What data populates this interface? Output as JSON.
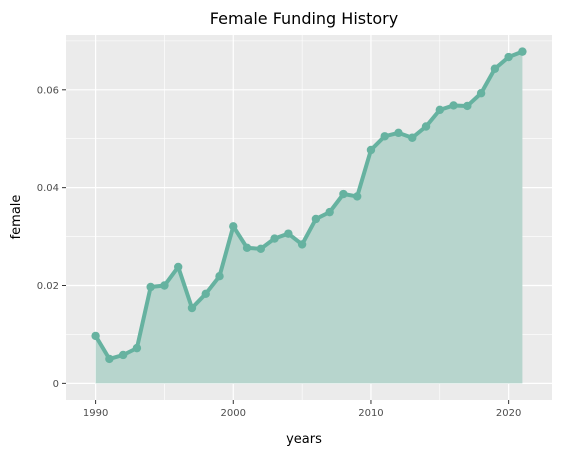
{
  "chart_data": {
    "type": "area",
    "title": "Female Funding History",
    "xlabel": "years",
    "ylabel": "female",
    "xlim": [
      1987.85,
      2023.15
    ],
    "ylim": [
      -0.0034,
      0.0712
    ],
    "x_ticks": [
      1990,
      2000,
      2010,
      2020
    ],
    "x_tick_labels": [
      "1990",
      "2000",
      "2010",
      "2020"
    ],
    "y_ticks": [
      0,
      0.02,
      0.04,
      0.06
    ],
    "y_tick_labels": [
      "0",
      "0.02",
      "0.04",
      "0.06"
    ],
    "grid": true,
    "legend": "none",
    "colors": {
      "panel": "#ebebeb",
      "grid": "#ffffff",
      "line": "#66b2a0",
      "area": "#b7d5cd",
      "tick_text": "#4d4d4d",
      "text": "#000000"
    },
    "series": [
      {
        "x": [
          1990,
          1991,
          1992,
          1993,
          1994,
          1995,
          1996,
          1997,
          1998,
          1999,
          2000,
          2001,
          2002,
          2003,
          2004,
          2005,
          2006,
          2007,
          2008,
          2009,
          2010,
          2011,
          2012,
          2013,
          2014,
          2015,
          2016,
          2017,
          2018,
          2019,
          2020,
          2021
        ],
        "values": [
          0.0097,
          0.005,
          0.0058,
          0.0072,
          0.0197,
          0.02,
          0.0238,
          0.0154,
          0.0183,
          0.0219,
          0.0321,
          0.0277,
          0.0275,
          0.0296,
          0.0306,
          0.0284,
          0.0336,
          0.035,
          0.0387,
          0.0382,
          0.0477,
          0.0505,
          0.0512,
          0.0502,
          0.0525,
          0.0559,
          0.0568,
          0.0567,
          0.0593,
          0.0643,
          0.0667,
          0.0678
        ]
      }
    ]
  }
}
